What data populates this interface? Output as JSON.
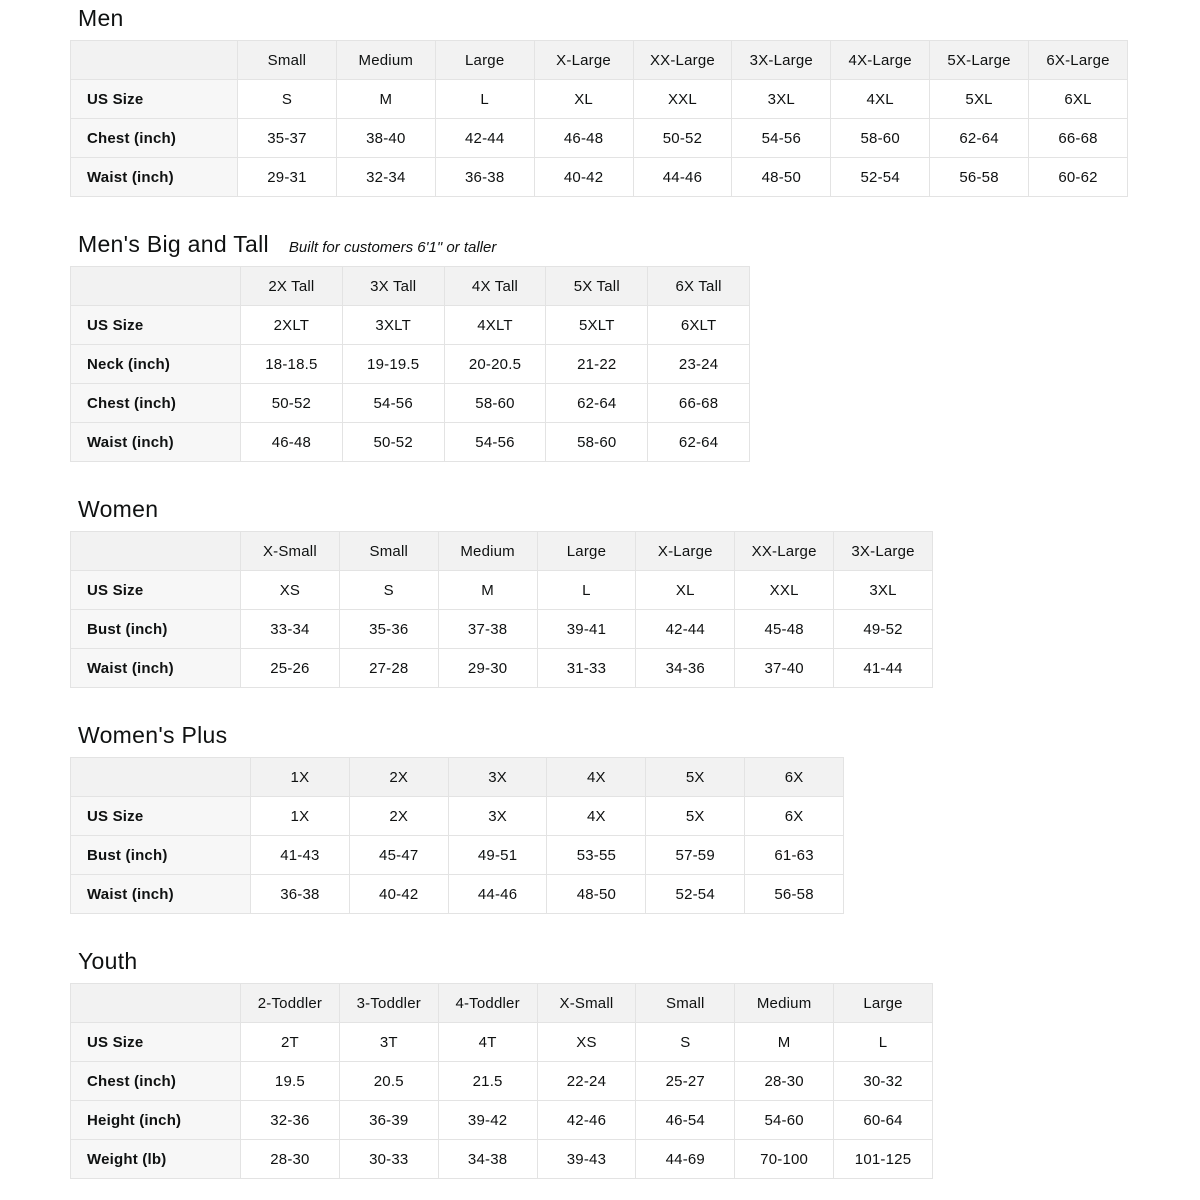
{
  "page_background": "#ffffff",
  "colors": {
    "title_text": "#0f1111",
    "table_text": "#0f1111",
    "header_row_bg": "#f2f2f2",
    "label_col_bg": "#f7f7f7",
    "border": "#e3e3e3"
  },
  "chart_data": [
    {
      "type": "table",
      "id": "men",
      "title": "Men",
      "subtitle": "",
      "columns": [
        "Small",
        "Medium",
        "Large",
        "X-Large",
        "XX-Large",
        "3X-Large",
        "4X-Large",
        "5X-Large",
        "6X-Large"
      ],
      "rows": [
        {
          "label": "US Size",
          "values": [
            "S",
            "M",
            "L",
            "XL",
            "XXL",
            "3XL",
            "4XL",
            "5XL",
            "6XL"
          ]
        },
        {
          "label": "Chest (inch)",
          "values": [
            "35-37",
            "38-40",
            "42-44",
            "46-48",
            "50-52",
            "54-56",
            "58-60",
            "62-64",
            "66-68"
          ]
        },
        {
          "label": "Waist (inch)",
          "values": [
            "29-31",
            "32-34",
            "36-38",
            "40-42",
            "44-46",
            "48-50",
            "52-54",
            "56-58",
            "60-62"
          ]
        }
      ]
    },
    {
      "type": "table",
      "id": "mens-big-and-tall",
      "title": "Men's Big and Tall",
      "subtitle": "Built for customers 6'1\" or taller",
      "columns": [
        "2X Tall",
        "3X Tall",
        "4X Tall",
        "5X Tall",
        "6X Tall"
      ],
      "rows": [
        {
          "label": "US Size",
          "values": [
            "2XLT",
            "3XLT",
            "4XLT",
            "5XLT",
            "6XLT"
          ]
        },
        {
          "label": "Neck (inch)",
          "values": [
            "18-18.5",
            "19-19.5",
            "20-20.5",
            "21-22",
            "23-24"
          ]
        },
        {
          "label": "Chest (inch)",
          "values": [
            "50-52",
            "54-56",
            "58-60",
            "62-64",
            "66-68"
          ]
        },
        {
          "label": "Waist (inch)",
          "values": [
            "46-48",
            "50-52",
            "54-56",
            "58-60",
            "62-64"
          ]
        }
      ]
    },
    {
      "type": "table",
      "id": "women",
      "title": "Women",
      "subtitle": "",
      "columns": [
        "X-Small",
        "Small",
        "Medium",
        "Large",
        "X-Large",
        "XX-Large",
        "3X-Large"
      ],
      "rows": [
        {
          "label": "US Size",
          "values": [
            "XS",
            "S",
            "M",
            "L",
            "XL",
            "XXL",
            "3XL"
          ]
        },
        {
          "label": "Bust (inch)",
          "values": [
            "33-34",
            "35-36",
            "37-38",
            "39-41",
            "42-44",
            "45-48",
            "49-52"
          ]
        },
        {
          "label": "Waist (inch)",
          "values": [
            "25-26",
            "27-28",
            "29-30",
            "31-33",
            "34-36",
            "37-40",
            "41-44"
          ]
        }
      ]
    },
    {
      "type": "table",
      "id": "womens-plus",
      "title": "Women's Plus",
      "subtitle": "",
      "columns": [
        "1X",
        "2X",
        "3X",
        "4X",
        "5X",
        "6X"
      ],
      "rows": [
        {
          "label": "US Size",
          "values": [
            "1X",
            "2X",
            "3X",
            "4X",
            "5X",
            "6X"
          ]
        },
        {
          "label": "Bust (inch)",
          "values": [
            "41-43",
            "45-47",
            "49-51",
            "53-55",
            "57-59",
            "61-63"
          ]
        },
        {
          "label": "Waist (inch)",
          "values": [
            "36-38",
            "40-42",
            "44-46",
            "48-50",
            "52-54",
            "56-58"
          ]
        }
      ]
    },
    {
      "type": "table",
      "id": "youth",
      "title": "Youth",
      "subtitle": "",
      "columns": [
        "2-Toddler",
        "3-Toddler",
        "4-Toddler",
        "X-Small",
        "Small",
        "Medium",
        "Large"
      ],
      "rows": [
        {
          "label": "US Size",
          "values": [
            "2T",
            "3T",
            "4T",
            "XS",
            "S",
            "M",
            "L"
          ]
        },
        {
          "label": "Chest (inch)",
          "values": [
            "19.5",
            "20.5",
            "21.5",
            "22-24",
            "25-27",
            "28-30",
            "30-32"
          ]
        },
        {
          "label": "Height (inch)",
          "values": [
            "32-36",
            "36-39",
            "39-42",
            "42-46",
            "46-54",
            "54-60",
            "60-64"
          ]
        },
        {
          "label": "Weight (lb)",
          "values": [
            "28-30",
            "30-33",
            "34-38",
            "39-43",
            "44-69",
            "70-100",
            "101-125"
          ]
        }
      ]
    }
  ]
}
